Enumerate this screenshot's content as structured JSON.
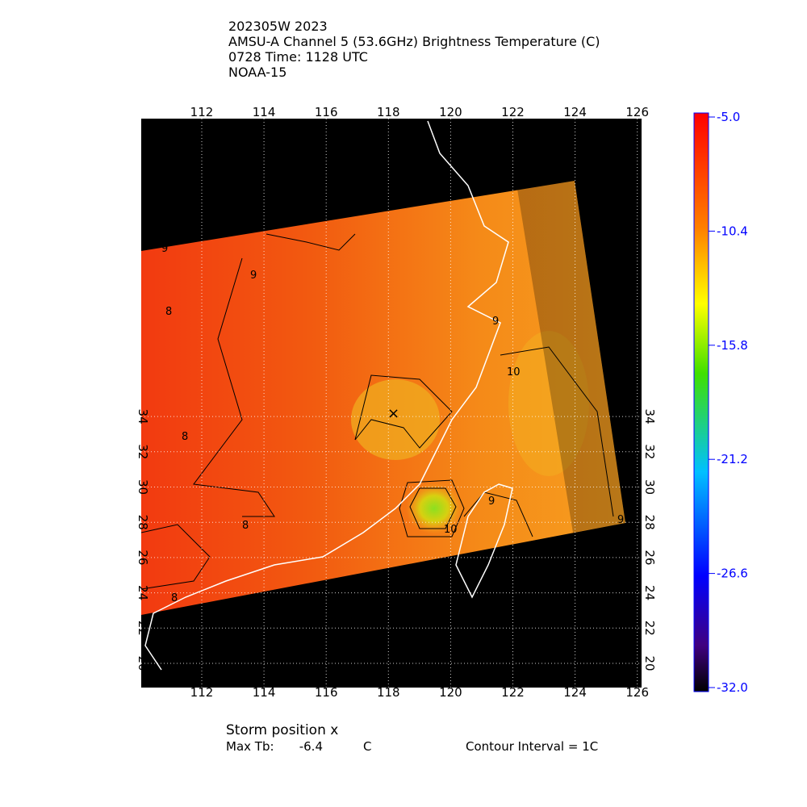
{
  "header": {
    "lines": [
      "202305W 2023",
      "AMSU-A Channel 5 (53.6GHz) Brightness Temperature (C)",
      "0728 Time: 1128 UTC",
      "NOAA-15"
    ]
  },
  "map": {
    "lon_ticks": [
      112,
      114,
      116,
      118,
      120,
      122,
      124,
      126
    ],
    "lat_ticks": [
      20,
      22,
      24,
      26,
      28,
      30,
      32,
      34
    ],
    "contour_labels": [
      "9",
      "8",
      "9",
      "8",
      "8",
      "8",
      "9",
      "10",
      "9",
      "10",
      "9"
    ]
  },
  "colorbar": {
    "ticks": [
      {
        "value": -5,
        "label": "-5.0"
      },
      -10.4,
      -15.8,
      -21.2,
      -26.6,
      {
        "value": -32,
        "label": "-32.0"
      }
    ]
  },
  "footer": {
    "storm_position": "Storm position x",
    "max_tb_label": "Max Tb:",
    "max_tb": -6.4,
    "max_tb_unit": "C",
    "contour_interval": "Contour Interval = 1C"
  }
}
